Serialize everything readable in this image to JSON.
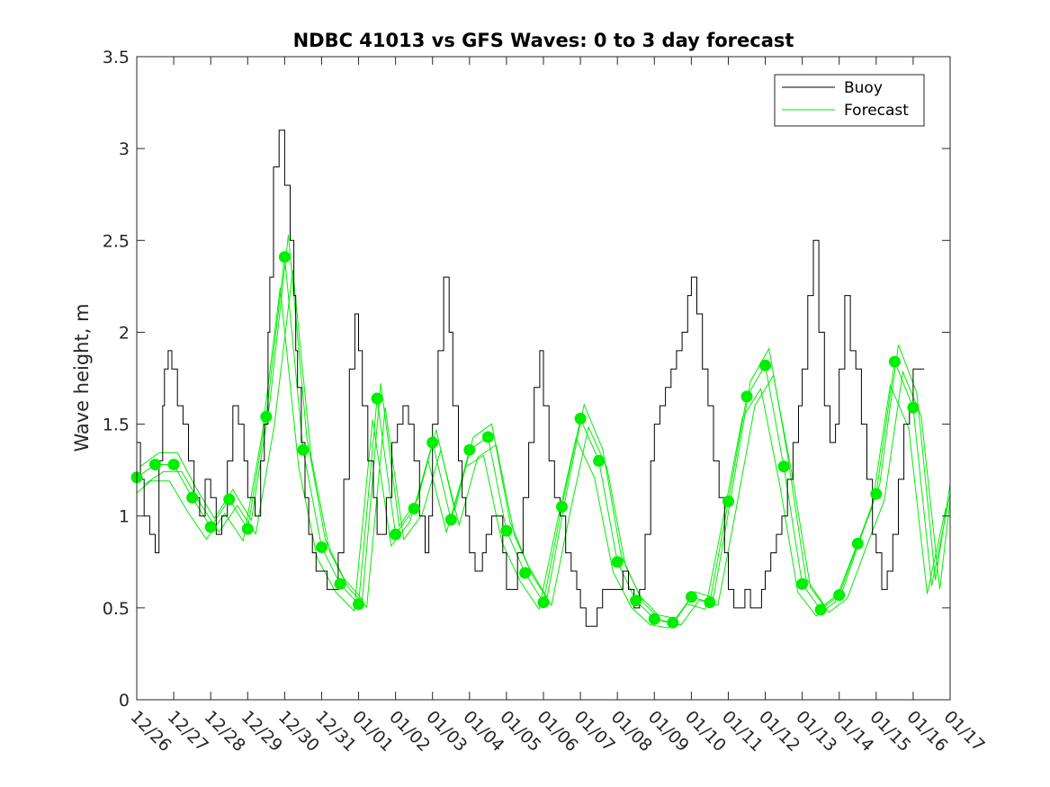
{
  "chart_data": {
    "type": "line",
    "title": "NDBC 41013 vs GFS Waves: 0 to 3 day forecast",
    "xlabel": "",
    "ylabel": "Wave height, m",
    "ylim": [
      0,
      3.5
    ],
    "xlim": [
      0,
      22
    ],
    "yticks": [
      0,
      0.5,
      1,
      1.5,
      2,
      2.5,
      3,
      3.5
    ],
    "ytick_labels": [
      "0",
      "0.5",
      "1",
      "1.5",
      "2",
      "2.5",
      "3",
      "3.5"
    ],
    "x_tick_labels": [
      "12/26",
      "12/27",
      "12/28",
      "12/29",
      "12/30",
      "12/31",
      "01/01",
      "01/02",
      "01/03",
      "01/04",
      "01/05",
      "01/06",
      "01/07",
      "01/08",
      "01/09",
      "01/10",
      "01/11",
      "01/12",
      "01/13",
      "01/14",
      "01/15",
      "01/16",
      "01/17"
    ],
    "legend": {
      "location": "top-right",
      "entries": [
        {
          "label": "Buoy",
          "color": "#000000"
        },
        {
          "label": "Forecast",
          "color": "#00ee00"
        }
      ]
    },
    "buoy": {
      "name": "Buoy",
      "color": "#000000",
      "x": [
        0,
        0.1,
        0.2,
        0.35,
        0.5,
        0.6,
        0.7,
        0.75,
        0.85,
        0.95,
        1.1,
        1.25,
        1.4,
        1.55,
        1.7,
        1.85,
        2.0,
        2.15,
        2.3,
        2.45,
        2.6,
        2.75,
        2.9,
        3.0,
        3.2,
        3.35,
        3.45,
        3.55,
        3.6,
        3.7,
        3.85,
        4.0,
        4.15,
        4.25,
        4.3,
        4.35,
        4.45,
        4.55,
        4.65,
        4.75,
        4.85,
        5.0,
        5.15,
        5.3,
        5.45,
        5.6,
        5.75,
        5.9,
        6.0,
        6.1,
        6.25,
        6.4,
        6.5,
        6.6,
        6.75,
        6.9,
        7.05,
        7.2,
        7.35,
        7.5,
        7.65,
        7.8,
        7.9,
        8.0,
        8.15,
        8.3,
        8.45,
        8.55,
        8.7,
        8.8,
        8.9,
        9.0,
        9.15,
        9.25,
        9.35,
        9.45,
        9.6,
        9.75,
        9.9,
        10.0,
        10.15,
        10.3,
        10.45,
        10.6,
        10.75,
        10.9,
        11.0,
        11.15,
        11.3,
        11.45,
        11.6,
        11.75,
        11.9,
        12.0,
        12.15,
        12.3,
        12.45,
        12.6,
        12.75,
        12.9,
        13.0,
        13.15,
        13.3,
        13.45,
        13.6,
        13.75,
        13.9,
        14.0,
        14.15,
        14.3,
        14.45,
        14.6,
        14.75,
        14.9,
        15.0,
        15.15,
        15.3,
        15.45,
        15.6,
        15.75,
        15.9,
        16.0,
        16.15,
        16.3,
        16.45,
        16.6,
        16.75,
        16.9,
        17.0,
        17.15,
        17.3,
        17.45,
        17.6,
        17.75,
        17.9,
        18.0,
        18.15,
        18.3,
        18.45,
        18.6,
        18.75,
        18.9,
        19.0,
        19.15,
        19.3,
        19.45,
        19.6,
        19.75,
        19.9,
        20.0,
        20.15,
        20.3,
        20.45,
        20.6,
        20.75,
        20.9,
        21.0,
        21.1,
        21.2,
        21.3
      ],
      "y": [
        1.4,
        1.2,
        1.0,
        0.9,
        0.8,
        1.3,
        1.6,
        1.8,
        1.9,
        1.8,
        1.6,
        1.5,
        1.3,
        1.1,
        1.0,
        1.2,
        1.1,
        0.9,
        1.0,
        1.3,
        1.6,
        1.5,
        1.3,
        1.1,
        1.0,
        1.3,
        1.5,
        2.0,
        2.3,
        2.9,
        3.1,
        2.8,
        2.5,
        2.2,
        1.9,
        1.7,
        1.4,
        1.1,
        0.9,
        0.8,
        0.7,
        0.7,
        0.6,
        0.6,
        0.8,
        1.2,
        1.8,
        2.1,
        1.9,
        1.6,
        1.3,
        1.1,
        0.9,
        0.9,
        1.1,
        1.4,
        1.5,
        1.6,
        1.5,
        1.3,
        1.0,
        0.8,
        1.0,
        1.5,
        1.9,
        2.3,
        2.0,
        1.6,
        1.3,
        1.1,
        1.0,
        0.8,
        0.7,
        0.7,
        0.8,
        0.9,
        1.0,
        1.0,
        0.8,
        0.6,
        0.6,
        0.8,
        1.1,
        1.4,
        1.7,
        1.9,
        1.6,
        1.3,
        1.1,
        1.0,
        0.8,
        0.7,
        0.6,
        0.5,
        0.4,
        0.4,
        0.5,
        0.6,
        0.6,
        0.6,
        0.6,
        0.7,
        0.6,
        0.5,
        0.6,
        0.9,
        1.3,
        1.5,
        1.6,
        1.7,
        1.8,
        1.9,
        2.0,
        2.2,
        2.3,
        2.1,
        1.8,
        1.6,
        1.3,
        1.1,
        0.8,
        0.6,
        0.5,
        0.5,
        0.6,
        0.5,
        0.5,
        0.6,
        0.7,
        0.8,
        0.9,
        1.0,
        1.2,
        1.4,
        1.6,
        1.8,
        2.2,
        2.5,
        2.0,
        1.6,
        1.4,
        1.5,
        1.8,
        2.2,
        1.9,
        1.8,
        1.5,
        1.2,
        0.9,
        0.8,
        0.6,
        0.7,
        0.9,
        1.2,
        1.5,
        1.6,
        1.8,
        1.8,
        1.8,
        1.8
      ]
    },
    "forecast": {
      "name": "Forecast",
      "color": "#00ee00",
      "x": [
        0,
        0.5,
        1,
        1.5,
        2,
        2.5,
        3,
        3.5,
        4,
        4.5,
        5,
        5.5,
        6,
        6.5,
        7,
        7.5,
        8,
        8.5,
        9,
        9.5,
        10,
        10.5,
        11,
        11.5,
        12,
        12.5,
        13,
        13.5,
        14,
        14.5,
        15,
        15.5,
        16,
        16.5,
        17,
        17.5,
        18,
        18.5,
        19,
        19.5,
        20,
        20.5,
        21,
        21.5,
        22
      ],
      "y": [
        1.21,
        1.28,
        1.28,
        1.1,
        0.94,
        1.09,
        0.93,
        1.54,
        2.41,
        1.36,
        0.83,
        0.63,
        0.52,
        1.64,
        0.9,
        1.04,
        1.4,
        0.98,
        1.36,
        1.43,
        0.92,
        0.69,
        0.53,
        1.05,
        1.53,
        1.3,
        0.75,
        0.54,
        0.44,
        0.42,
        0.56,
        0.53,
        1.08,
        1.65,
        1.82,
        1.27,
        0.63,
        0.49,
        0.57,
        0.85,
        1.12,
        1.84,
        1.59,
        0.62,
        1.12
      ]
    },
    "forecast_markers": {
      "x": [
        0,
        0.5,
        1,
        1.5,
        2,
        2.5,
        3,
        3.5,
        4,
        4.5,
        5,
        5.5,
        6,
        6.5,
        7,
        7.5,
        8,
        8.5,
        9,
        9.5,
        10,
        10.5,
        11,
        11.5,
        12,
        12.5,
        13,
        13.5,
        14,
        14.5,
        15,
        15.5,
        16,
        16.5,
        17,
        17.5,
        18,
        18.5,
        19,
        19.5,
        20,
        20.5,
        21
      ],
      "y": [
        1.21,
        1.28,
        1.28,
        1.1,
        0.94,
        1.09,
        0.93,
        1.54,
        2.41,
        1.36,
        0.83,
        0.63,
        0.52,
        1.64,
        0.9,
        1.04,
        1.4,
        0.98,
        1.36,
        1.43,
        0.92,
        0.69,
        0.53,
        1.05,
        1.53,
        1.3,
        0.75,
        0.54,
        0.44,
        0.42,
        0.56,
        0.53,
        1.08,
        1.65,
        1.82,
        1.27,
        0.63,
        0.49,
        0.57,
        0.85,
        1.12,
        1.84,
        1.59
      ]
    },
    "forecast_variant_offsets_x": [
      -0.12,
      0.1,
      0.22
    ],
    "forecast_variant_scales": [
      0.93,
      1.05,
      0.97
    ]
  }
}
